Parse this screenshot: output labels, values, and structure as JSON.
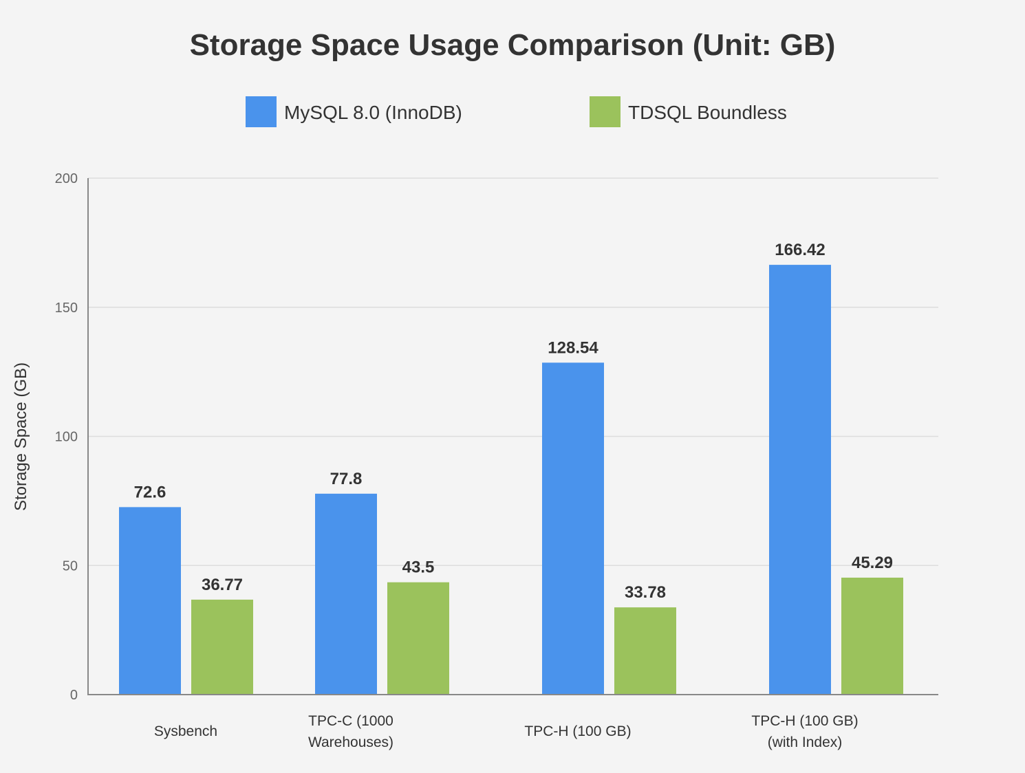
{
  "chart_data": {
    "type": "bar",
    "title": "Storage Space Usage Comparison (Unit: GB)",
    "xlabel": "",
    "ylabel": "Storage Space (GB)",
    "ylim": [
      0,
      200
    ],
    "yticks": [
      0,
      50,
      100,
      150,
      200
    ],
    "grid": true,
    "legend_position": "top-center",
    "categories": [
      [
        "Sysbench"
      ],
      [
        "TPC-C (1000",
        "Warehouses)"
      ],
      [
        "TPC-H (100 GB)"
      ],
      [
        "TPC-H (100 GB)",
        "(with Index)"
      ]
    ],
    "series": [
      {
        "name": "MySQL 8.0 (InnoDB)",
        "color": "#4a93ec",
        "values": [
          72.6,
          77.8,
          128.54,
          166.42
        ],
        "labels": [
          "72.6",
          "77.8",
          "128.54",
          "166.42"
        ]
      },
      {
        "name": "TDSQL Boundless",
        "color": "#9bc25c",
        "values": [
          36.77,
          43.5,
          33.78,
          45.29
        ],
        "labels": [
          "36.77",
          "43.5",
          "33.78",
          "45.29"
        ]
      }
    ]
  }
}
